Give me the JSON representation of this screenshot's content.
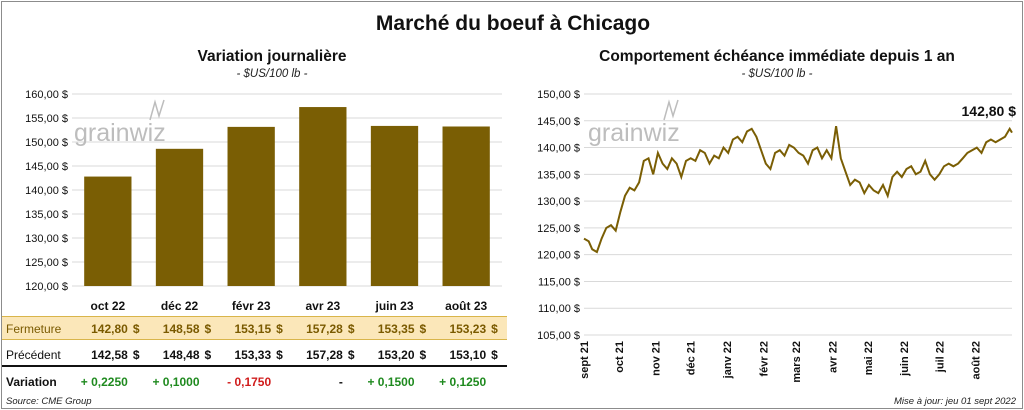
{
  "title": "Marché du boeuf à Chicago",
  "left_panel": {
    "title": "Variation  journalière",
    "subtitle": "- $US/100 lb -",
    "watermark": "grainwiz",
    "table": {
      "close_label": "Fermeture",
      "prev_label": "Précédent",
      "var_label": "Variation",
      "currency": "$",
      "close": [
        "142,80",
        "148,58",
        "153,15",
        "157,28",
        "153,35",
        "153,23"
      ],
      "prev": [
        "142,58",
        "148,48",
        "153,33",
        "157,28",
        "153,20",
        "153,10"
      ],
      "variation": [
        "+ 0,2250",
        "+ 0,1000",
        "- 0,1750",
        "-",
        "+ 0,1500",
        "+ 0,1250"
      ]
    }
  },
  "right_panel": {
    "title": "Comportement  échéance immédiate depuis 1 an",
    "subtitle": "- $US/100 lb -",
    "watermark": "grainwiz",
    "last_label": "142,80 $"
  },
  "footer": {
    "source": "Source: CME Group",
    "updated": "Mise à jour: jeu 01 sept 2022"
  },
  "colors": {
    "bar": "#7a5e04",
    "line": "#7a5e04",
    "grid": "#d9d9d9",
    "positive": "#1f8a1f",
    "negative": "#d01c1c",
    "highlight_row": "#fbe7b9"
  },
  "chart_data": [
    {
      "type": "bar",
      "categories": [
        "oct 22",
        "déc 22",
        "févr 23",
        "avr 23",
        "juin 23",
        "août 23"
      ],
      "values": [
        142.8,
        148.58,
        153.15,
        157.28,
        153.35,
        153.23
      ],
      "ylim": [
        120,
        160
      ],
      "ytick_values": [
        120,
        125,
        130,
        135,
        140,
        145,
        150,
        155,
        160
      ],
      "ytick_labels": [
        "120,00 $",
        "125,00 $",
        "130,00 $",
        "135,00 $",
        "140,00 $",
        "145,00 $",
        "150,00 $",
        "155,00 $",
        "160,00 $"
      ],
      "grid": true
    },
    {
      "type": "line",
      "x": [
        "2021-09-01",
        "2021-09-05",
        "2021-09-08",
        "2021-09-12",
        "2021-09-16",
        "2021-09-20",
        "2021-09-24",
        "2021-09-28",
        "2021-10-02",
        "2021-10-06",
        "2021-10-10",
        "2021-10-14",
        "2021-10-18",
        "2021-10-22",
        "2021-10-26",
        "2021-10-30",
        "2021-11-03",
        "2021-11-07",
        "2021-11-11",
        "2021-11-15",
        "2021-11-19",
        "2021-11-23",
        "2021-11-27",
        "2021-12-01",
        "2021-12-05",
        "2021-12-09",
        "2021-12-13",
        "2021-12-17",
        "2021-12-21",
        "2021-12-25",
        "2021-12-29",
        "2022-01-02",
        "2022-01-06",
        "2022-01-10",
        "2022-01-14",
        "2022-01-18",
        "2022-01-22",
        "2022-01-26",
        "2022-01-30",
        "2022-02-03",
        "2022-02-07",
        "2022-02-11",
        "2022-02-15",
        "2022-02-19",
        "2022-02-23",
        "2022-02-27",
        "2022-03-03",
        "2022-03-07",
        "2022-03-11",
        "2022-03-15",
        "2022-03-19",
        "2022-03-23",
        "2022-03-27",
        "2022-03-31",
        "2022-04-04",
        "2022-04-08",
        "2022-04-12",
        "2022-04-16",
        "2022-04-20",
        "2022-04-24",
        "2022-04-28",
        "2022-05-02",
        "2022-05-06",
        "2022-05-10",
        "2022-05-14",
        "2022-05-18",
        "2022-05-22",
        "2022-05-26",
        "2022-05-30",
        "2022-06-03",
        "2022-06-07",
        "2022-06-11",
        "2022-06-15",
        "2022-06-19",
        "2022-06-23",
        "2022-06-27",
        "2022-07-01",
        "2022-07-05",
        "2022-07-09",
        "2022-07-13",
        "2022-07-17",
        "2022-07-21",
        "2022-07-25",
        "2022-07-29",
        "2022-08-02",
        "2022-08-06",
        "2022-08-10",
        "2022-08-14",
        "2022-08-18",
        "2022-08-22",
        "2022-08-26",
        "2022-08-30",
        "2022-09-01"
      ],
      "y": [
        123.0,
        122.5,
        121.0,
        120.5,
        123.0,
        125.0,
        125.5,
        124.5,
        128.0,
        131.0,
        132.5,
        132.0,
        133.5,
        137.5,
        138.0,
        135.0,
        139.0,
        137.0,
        136.0,
        138.0,
        137.0,
        134.5,
        137.5,
        138.0,
        137.5,
        139.5,
        139.0,
        137.0,
        138.5,
        138.0,
        140.0,
        139.0,
        141.5,
        142.0,
        141.0,
        143.0,
        143.5,
        142.0,
        139.5,
        137.0,
        136.0,
        139.0,
        139.5,
        138.5,
        140.5,
        140.0,
        139.0,
        138.5,
        137.0,
        139.5,
        140.0,
        138.0,
        139.5,
        138.0,
        144.0,
        138.0,
        135.5,
        133.0,
        134.0,
        133.5,
        131.5,
        133.0,
        132.0,
        131.5,
        133.0,
        131.0,
        134.5,
        135.5,
        134.5,
        136.0,
        136.5,
        135.0,
        135.5,
        137.5,
        135.0,
        134.0,
        135.0,
        136.5,
        137.0,
        136.5,
        137.0,
        138.0,
        139.0,
        139.5,
        140.0,
        139.0,
        141.0,
        141.5,
        141.0,
        141.5,
        142.0,
        143.5,
        142.8
      ],
      "ylim": [
        105,
        150
      ],
      "ytick_values": [
        105,
        110,
        115,
        120,
        125,
        130,
        135,
        140,
        145,
        150
      ],
      "ytick_labels": [
        "105,00 $",
        "110,00 $",
        "115,00 $",
        "120,00 $",
        "125,00 $",
        "130,00 $",
        "135,00 $",
        "140,00 $",
        "145,00 $",
        "150,00 $"
      ],
      "xtick_dates": [
        "2021-09-01",
        "2021-10-01",
        "2021-11-01",
        "2021-12-01",
        "2022-01-01",
        "2022-02-01",
        "2022-03-01",
        "2022-04-01",
        "2022-05-01",
        "2022-06-01",
        "2022-07-01",
        "2022-08-01"
      ],
      "xtick_labels": [
        "sept 21",
        "oct 21",
        "nov 21",
        "déc 21",
        "janv 22",
        "févr 22",
        "mars 22",
        "avr 22",
        "mai 22",
        "juin 22",
        "juil 22",
        "août 22"
      ],
      "grid": true
    }
  ]
}
